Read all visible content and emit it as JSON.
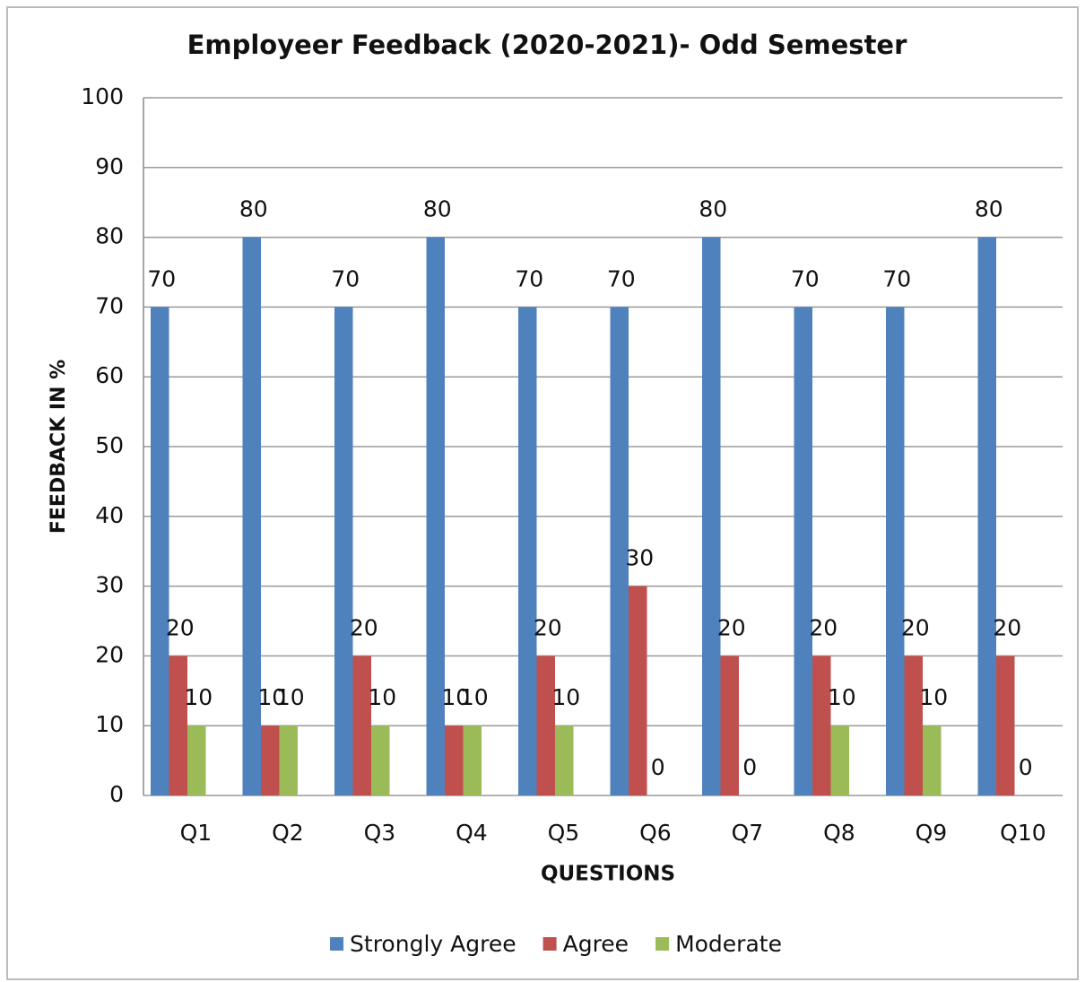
{
  "chart_data": {
    "type": "bar",
    "title": "Employeer Feedback (2020-2021)- Odd Semester",
    "x_label": "QUESTIONS",
    "y_label": "FEEDBACK IN %",
    "categories": [
      "Q1",
      "Q2",
      "Q3",
      "Q4",
      "Q5",
      "Q6",
      "Q7",
      "Q8",
      "Q9",
      "Q10"
    ],
    "series": [
      {
        "name": "Strongly Agree",
        "color": "#4f81bd",
        "values": [
          70,
          80,
          70,
          80,
          70,
          70,
          80,
          70,
          70,
          80
        ]
      },
      {
        "name": "Agree",
        "color": "#c0504d",
        "values": [
          20,
          10,
          20,
          10,
          20,
          30,
          20,
          20,
          20,
          20
        ]
      },
      {
        "name": "Moderate",
        "color": "#9bbb59",
        "values": [
          10,
          10,
          10,
          10,
          10,
          0,
          0,
          10,
          10,
          0
        ]
      }
    ],
    "ylim": [
      0,
      100
    ],
    "yticks": [
      0,
      10,
      20,
      30,
      40,
      50,
      60,
      70,
      80,
      90,
      100
    ],
    "grid": true,
    "legend": "bottom"
  }
}
